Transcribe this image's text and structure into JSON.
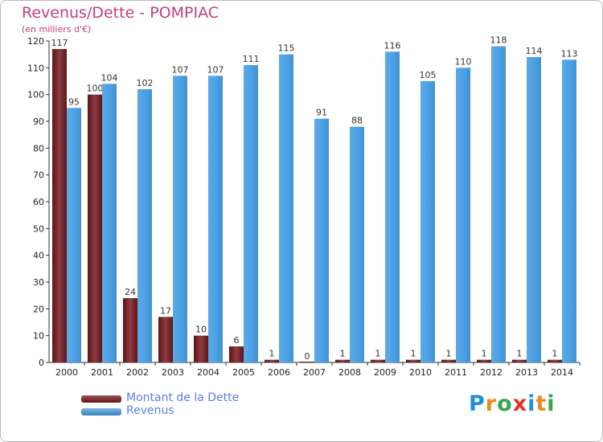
{
  "header": {
    "title": "Revenus/Dette - POMPIAC",
    "subtitle": "(en milliers d'€)"
  },
  "chart_data": {
    "type": "bar",
    "title": "Revenus/Dette - POMPIAC",
    "subtitle": "(en milliers d'€)",
    "categories": [
      "2000",
      "2001",
      "2002",
      "2003",
      "2004",
      "2005",
      "2006",
      "2007",
      "2008",
      "2009",
      "2010",
      "2011",
      "2012",
      "2013",
      "2014"
    ],
    "series": [
      {
        "name": "Montant de la Dette",
        "color": "#7a1a1f",
        "values": [
          117,
          100,
          24,
          17,
          10,
          6,
          1,
          0,
          1,
          1,
          1,
          1,
          1,
          1,
          1
        ]
      },
      {
        "name": "Revenus",
        "color": "#4aa0e4",
        "values": [
          95,
          104,
          102,
          107,
          107,
          111,
          115,
          91,
          88,
          116,
          105,
          110,
          118,
          114,
          113
        ]
      }
    ],
    "ylim": [
      0,
      120
    ],
    "yticks": [
      0,
      10,
      20,
      30,
      40,
      50,
      60,
      70,
      80,
      90,
      100,
      110,
      120
    ],
    "grid": false,
    "data_labels": true,
    "legend": "bottom-left"
  },
  "legend": {
    "items": [
      {
        "label": "Montant de la Dette",
        "color": "#7a1a1f"
      },
      {
        "label": "Revenus",
        "color": "#4aa0e4"
      }
    ]
  },
  "brand": {
    "letters": [
      {
        "ch": "P",
        "color": "#1e8fd8"
      },
      {
        "ch": "r",
        "color": "#f08a1c"
      },
      {
        "ch": "o",
        "color": "#3aa64b"
      },
      {
        "ch": "x",
        "color": "#e2322a"
      },
      {
        "ch": "i",
        "color": "#1e8fd8"
      },
      {
        "ch": "t",
        "color": "#f08a1c"
      },
      {
        "ch": "i",
        "color": "#3aa64b"
      }
    ]
  }
}
